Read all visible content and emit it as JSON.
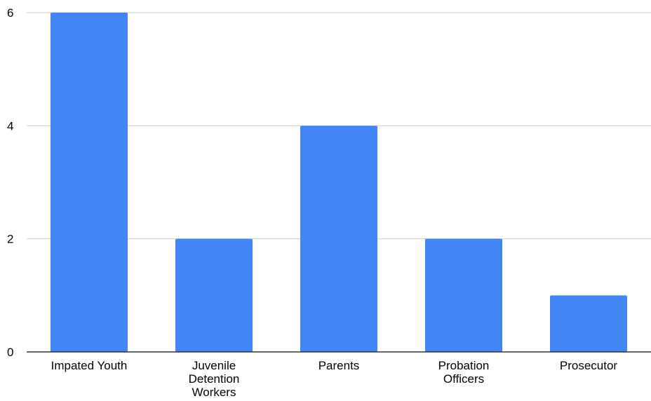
{
  "chart_data": {
    "type": "bar",
    "categories": [
      [
        "Impated Youth"
      ],
      [
        "Juvenile",
        "Detention",
        "Workers"
      ],
      [
        "Parents"
      ],
      [
        "Probation",
        "Officers"
      ],
      [
        "Prosecutor"
      ]
    ],
    "values": [
      6,
      2,
      4,
      2,
      1
    ],
    "yticks": [
      0,
      2,
      4,
      6
    ],
    "ylim": [
      0,
      6
    ],
    "grid": true,
    "legend": "none",
    "title": "",
    "xlabel": "",
    "ylabel": "",
    "colors": {
      "bar": "#4285f4",
      "grid": "#cccccc",
      "axis": "#333333",
      "text": "#000000"
    }
  }
}
